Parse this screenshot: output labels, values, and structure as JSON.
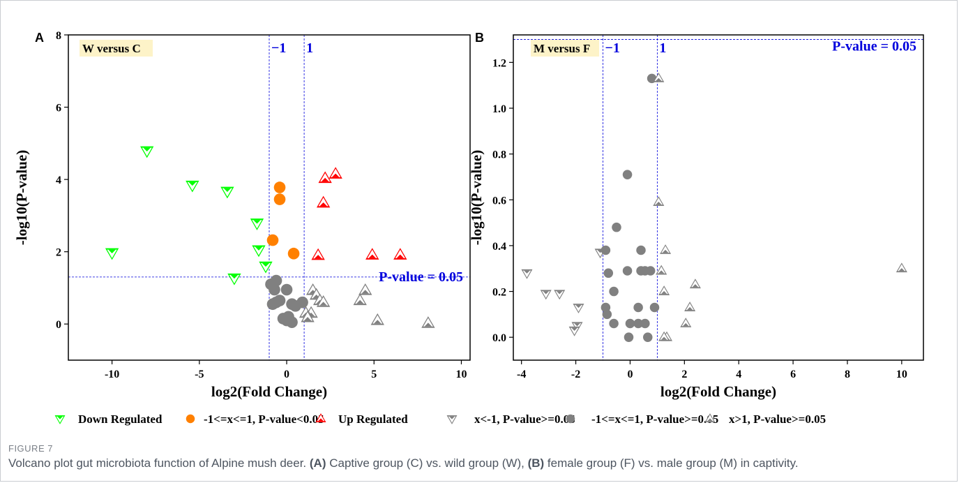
{
  "colors": {
    "down": "#00ff00",
    "mid_sig": "#ff8000",
    "up": "#ff0000",
    "ns": "#808080",
    "guide": "#0000dd",
    "label_bg": "#fdf3c8"
  },
  "chart_data": [
    {
      "type": "scatter",
      "panel": "A",
      "label": "W versus C",
      "xlabel": "log2(Fold Change)",
      "ylabel": "-log10(P-value)",
      "xlim": [
        -12.5,
        10.5
      ],
      "ylim": [
        -1,
        8
      ],
      "xticks": [
        -10,
        -5,
        0,
        5,
        10
      ],
      "yticks": [
        0,
        2,
        4,
        6,
        8
      ],
      "vlines": [
        {
          "x": -1,
          "label": "−1"
        },
        {
          "x": 1,
          "label": "1"
        }
      ],
      "hline": {
        "y": 1.3,
        "label": "P-value = 0.05"
      },
      "series": [
        {
          "key": "down",
          "shape": "down_triangle",
          "points": [
            [
              -10.0,
              1.97
            ],
            [
              -8.0,
              4.79
            ],
            [
              -5.4,
              3.84
            ],
            [
              -3.4,
              3.67
            ],
            [
              -1.7,
              2.79
            ],
            [
              -1.6,
              2.05
            ],
            [
              -1.2,
              1.6
            ],
            [
              -3.0,
              1.27
            ]
          ]
        },
        {
          "key": "mid_sig",
          "shape": "circle",
          "points": [
            [
              -0.4,
              3.78
            ],
            [
              -0.4,
              3.45
            ],
            [
              -0.8,
              2.32
            ],
            [
              0.4,
              1.95
            ]
          ]
        },
        {
          "key": "up",
          "shape": "up_triangle",
          "points": [
            [
              2.2,
              4.03
            ],
            [
              2.8,
              4.15
            ],
            [
              2.1,
              3.35
            ],
            [
              1.8,
              1.9
            ],
            [
              4.9,
              1.91
            ],
            [
              6.5,
              1.91
            ]
          ]
        },
        {
          "key": "ns_mid",
          "shape": "circle",
          "points": [
            [
              -0.9,
              1.1
            ],
            [
              -0.6,
              1.2
            ],
            [
              -0.7,
              0.95
            ],
            [
              -0.6,
              0.6
            ],
            [
              -0.4,
              0.65
            ],
            [
              -0.8,
              0.55
            ],
            [
              0.0,
              0.95
            ],
            [
              0.3,
              0.55
            ],
            [
              0.5,
              0.5
            ],
            [
              0.9,
              0.6
            ],
            [
              -0.2,
              0.15
            ],
            [
              0.1,
              0.2
            ],
            [
              0.3,
              0.05
            ],
            [
              0.0,
              0.1
            ]
          ]
        },
        {
          "key": "ns_up",
          "shape": "up_triangle",
          "points": [
            [
              1.5,
              0.93
            ],
            [
              1.7,
              0.8
            ],
            [
              1.9,
              0.65
            ],
            [
              2.1,
              0.6
            ],
            [
              1.4,
              0.3
            ],
            [
              1.1,
              0.3
            ],
            [
              1.2,
              0.18
            ],
            [
              4.5,
              0.93
            ],
            [
              4.2,
              0.65
            ],
            [
              5.2,
              0.1
            ],
            [
              8.1,
              0.02
            ]
          ]
        }
      ]
    },
    {
      "type": "scatter",
      "panel": "B",
      "label": "M versus F",
      "xlabel": "log2(Fold Change)",
      "ylabel": "-log10(P-value)",
      "xlim": [
        -4.3,
        10.8
      ],
      "ylim": [
        -0.1,
        1.32
      ],
      "xticks": [
        -4,
        -2,
        0,
        2,
        4,
        6,
        8,
        10
      ],
      "yticks": [
        0.0,
        0.2,
        0.4,
        0.6,
        0.8,
        1.0,
        1.2
      ],
      "vlines": [
        {
          "x": -1,
          "label": "−1"
        },
        {
          "x": 1,
          "label": "1"
        }
      ],
      "hline": {
        "y": 1.3,
        "label": "P-value = 0.05"
      },
      "series": [
        {
          "key": "ns_down",
          "shape": "down_triangle",
          "points": [
            [
              -3.8,
              0.28
            ],
            [
              -3.1,
              0.19
            ],
            [
              -2.6,
              0.19
            ],
            [
              -1.9,
              0.13
            ],
            [
              -1.95,
              0.05
            ],
            [
              -2.05,
              0.03
            ],
            [
              -1.1,
              0.37
            ]
          ]
        },
        {
          "key": "ns_mid",
          "shape": "circle",
          "points": [
            [
              0.8,
              1.13
            ],
            [
              -0.1,
              0.71
            ],
            [
              -0.5,
              0.48
            ],
            [
              -0.9,
              0.38
            ],
            [
              0.4,
              0.38
            ],
            [
              -0.1,
              0.29
            ],
            [
              0.4,
              0.29
            ],
            [
              0.55,
              0.29
            ],
            [
              0.75,
              0.29
            ],
            [
              -0.8,
              0.28
            ],
            [
              -0.6,
              0.2
            ],
            [
              -0.9,
              0.13
            ],
            [
              0.3,
              0.13
            ],
            [
              0.9,
              0.13
            ],
            [
              -0.85,
              0.1
            ],
            [
              0.0,
              0.06
            ],
            [
              0.3,
              0.06
            ],
            [
              0.55,
              0.06
            ],
            [
              -0.6,
              0.06
            ],
            [
              -0.05,
              0.0
            ],
            [
              0.65,
              0.0
            ]
          ]
        },
        {
          "key": "ns_up",
          "shape": "up_triangle",
          "points": [
            [
              1.05,
              1.13
            ],
            [
              1.05,
              0.59
            ],
            [
              1.3,
              0.38
            ],
            [
              1.15,
              0.29
            ],
            [
              1.25,
              0.2
            ],
            [
              2.4,
              0.23
            ],
            [
              2.2,
              0.13
            ],
            [
              2.05,
              0.06
            ],
            [
              1.35,
              0.0
            ],
            [
              1.25,
              0.0
            ],
            [
              10.0,
              0.3
            ]
          ]
        }
      ]
    }
  ],
  "legend": [
    {
      "key": "down",
      "label": "Down Regulated"
    },
    {
      "key": "mid_sig",
      "label": "-1<=x<=1, P-value<0.05"
    },
    {
      "key": "up",
      "label": "Up Regulated"
    },
    {
      "key": "ns_down",
      "label": "x<-1, P-value>=0.05"
    },
    {
      "key": "ns_mid",
      "label": "-1<=x<=1, P-value>=0.05"
    },
    {
      "key": "ns_up",
      "label": "x>1, P-value>=0.05"
    }
  ],
  "caption": {
    "figure_label": "FIGURE 7",
    "text_intro": "Volcano plot gut microbiota function of Alpine mush deer. ",
    "part_a": "(A)",
    "text_a": " Captive group (C) vs. wild group (W), ",
    "part_b": "(B)",
    "text_b": " female group (F) vs. male group (M) in captivity."
  }
}
